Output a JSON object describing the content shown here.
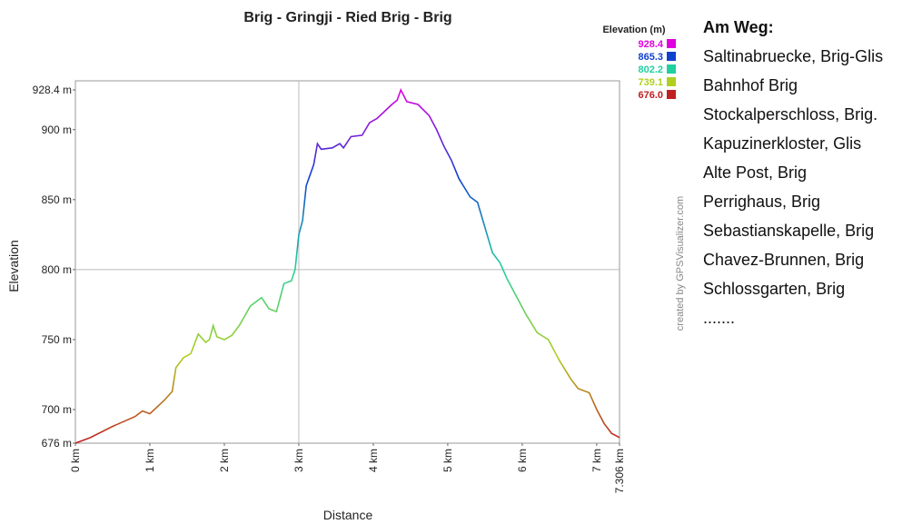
{
  "chart_data": {
    "type": "line",
    "title": "Brig - Gringji - Ried Brig - Brig",
    "x_label": "Distance",
    "y_label": "Elevation",
    "x": [
      0,
      0.2,
      0.5,
      0.8,
      0.9,
      1.0,
      1.1,
      1.2,
      1.3,
      1.35,
      1.45,
      1.55,
      1.65,
      1.75,
      1.8,
      1.85,
      1.9,
      2.0,
      2.1,
      2.2,
      2.35,
      2.5,
      2.6,
      2.7,
      2.8,
      2.9,
      2.95,
      3.0,
      3.05,
      3.1,
      3.2,
      3.25,
      3.3,
      3.45,
      3.55,
      3.6,
      3.7,
      3.85,
      3.95,
      4.05,
      4.15,
      4.25,
      4.32,
      4.37,
      4.45,
      4.6,
      4.75,
      4.85,
      4.95,
      5.05,
      5.15,
      5.3,
      5.4,
      5.5,
      5.6,
      5.7,
      5.8,
      5.95,
      6.05,
      6.2,
      6.35,
      6.5,
      6.65,
      6.75,
      6.9,
      7.0,
      7.1,
      7.2,
      7.306
    ],
    "values": [
      676,
      680,
      688,
      695,
      699,
      697,
      702,
      707,
      713,
      730,
      737,
      740,
      754,
      748,
      750,
      760,
      752,
      750,
      753,
      760,
      774,
      780,
      772,
      770,
      790,
      792,
      800,
      825,
      835,
      860,
      875,
      890,
      886,
      887,
      890,
      887,
      895,
      896,
      905,
      908,
      913,
      918,
      921,
      928.4,
      920,
      918,
      910,
      900,
      888,
      878,
      865,
      852,
      848,
      830,
      812,
      805,
      793,
      778,
      768,
      755,
      750,
      735,
      722,
      715,
      712,
      700,
      690,
      683,
      680
    ],
    "xlim": [
      0,
      7.306
    ],
    "xticks": [
      {
        "value": 0,
        "label": "0 km"
      },
      {
        "value": 1,
        "label": "1 km"
      },
      {
        "value": 2,
        "label": "2 km"
      },
      {
        "value": 3,
        "label": "3 km"
      },
      {
        "value": 4,
        "label": "4 km"
      },
      {
        "value": 5,
        "label": "5 km"
      },
      {
        "value": 6,
        "label": "6 km"
      },
      {
        "value": 7,
        "label": "7 km"
      },
      {
        "value": 7.306,
        "label": "7.306 km"
      }
    ],
    "ylim": [
      676,
      928.4
    ],
    "yticks": [
      {
        "value": 676,
        "label": "676 m"
      },
      {
        "value": 700,
        "label": "700 m"
      },
      {
        "value": 750,
        "label": "750 m"
      },
      {
        "value": 800,
        "label": "800 m"
      },
      {
        "value": 850,
        "label": "850 m"
      },
      {
        "value": 900,
        "label": "900 m"
      },
      {
        "value": 928.4,
        "label": "928.4 m"
      }
    ],
    "x_gridlines": [
      3
    ],
    "y_gridlines": [
      800
    ],
    "legend_title": "Elevation (m)",
    "color_scale": [
      {
        "value": 928.4,
        "label": "928.4",
        "color": "#e000e0"
      },
      {
        "value": 865.3,
        "label": "865.3",
        "color": "#1040d0"
      },
      {
        "value": 802.2,
        "label": "802.2",
        "color": "#20d0a0"
      },
      {
        "value": 739.1,
        "label": "739.1",
        "color": "#b0d020"
      },
      {
        "value": 676,
        "label": "676.0",
        "color": "#c02020"
      }
    ],
    "credit": "created by GPSVisualizer.com"
  },
  "sidebar": {
    "title": "Am Weg:",
    "items": [
      "Saltinabruecke, Brig-Glis",
      "Bahnhof Brig",
      "Stockalperschloss, Brig.",
      "Kapuzinerkloster, Glis",
      "Alte Post, Brig",
      "Perrighaus, Brig",
      "Sebastianskapelle, Brig",
      "Chavez-Brunnen, Brig",
      "Schlossgarten, Brig",
      "......."
    ]
  }
}
